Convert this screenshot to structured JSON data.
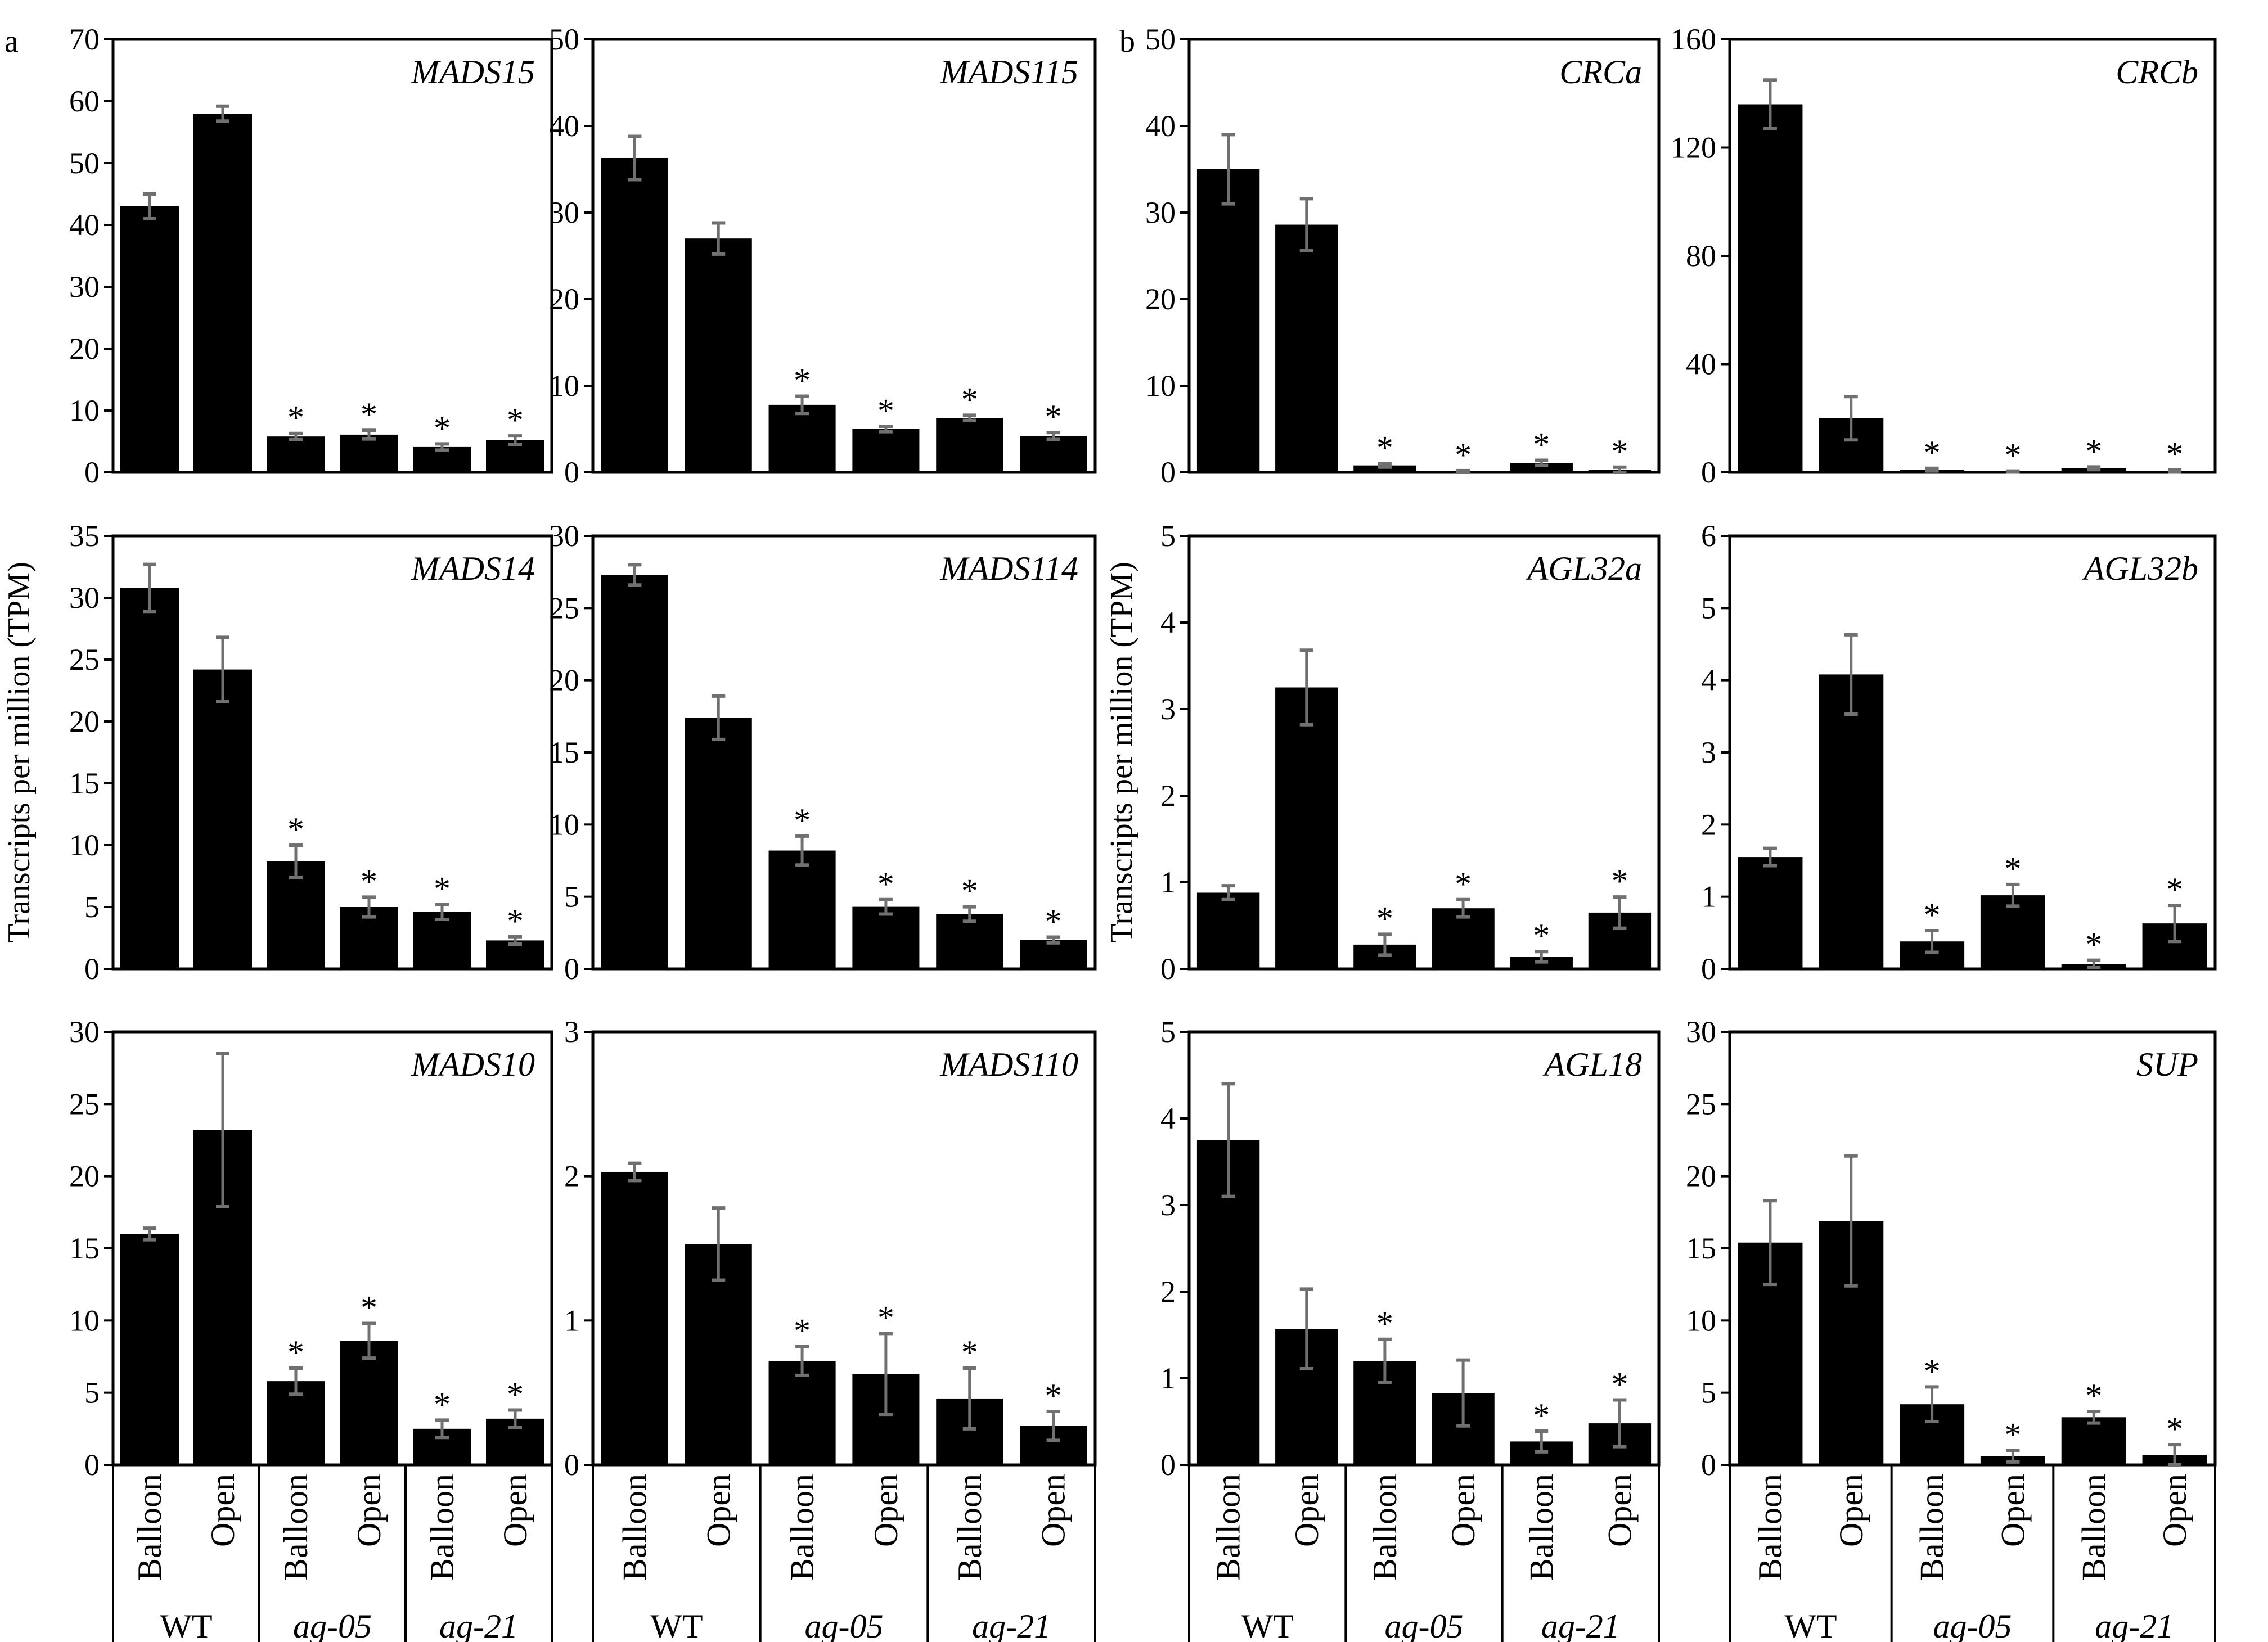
{
  "panel_letters": [
    "a",
    "b"
  ],
  "ylabel": "Transcripts per million (TPM)",
  "categories": [
    "Balloon",
    "Open",
    "Balloon",
    "Open",
    "Balloon",
    "Open"
  ],
  "groups": [
    "WT",
    "ag-05",
    "ag-21"
  ],
  "colors": {
    "bar": "#000000",
    "error_bar": "#707070",
    "axis": "#000000"
  },
  "chart_data": [
    {
      "type": "bar",
      "title": "MADS15",
      "ylim": [
        0,
        70
      ],
      "yticks": [
        0,
        10,
        20,
        30,
        40,
        50,
        60,
        70
      ],
      "values": [
        43,
        58,
        5.8,
        6.1,
        4.1,
        5.2
      ],
      "errors": [
        2,
        1.2,
        0.5,
        0.7,
        0.5,
        0.7
      ],
      "significant": [
        false,
        false,
        true,
        true,
        true,
        true
      ]
    },
    {
      "type": "bar",
      "title": "MADS115",
      "ylim": [
        0,
        50
      ],
      "yticks": [
        0,
        10,
        20,
        30,
        40,
        50
      ],
      "values": [
        36.3,
        27,
        7.8,
        5.0,
        6.3,
        4.2
      ],
      "errors": [
        2.5,
        1.8,
        1,
        0.3,
        0.3,
        0.4
      ],
      "significant": [
        false,
        false,
        true,
        true,
        true,
        true
      ]
    },
    {
      "type": "bar",
      "title": "CRCa",
      "ylim": [
        0,
        50
      ],
      "yticks": [
        0,
        10,
        20,
        30,
        40,
        50
      ],
      "values": [
        35,
        28.6,
        0.8,
        0.1,
        1.1,
        0.3
      ],
      "errors": [
        4,
        3,
        0.2,
        0.1,
        0.3,
        0.3
      ],
      "significant": [
        false,
        false,
        true,
        true,
        true,
        true
      ]
    },
    {
      "type": "bar",
      "title": "CRCb",
      "ylim": [
        0,
        160
      ],
      "yticks": [
        0,
        40,
        80,
        120,
        160
      ],
      "values": [
        136,
        20,
        1,
        0.3,
        1.5,
        0.5
      ],
      "errors": [
        9,
        8,
        0.5,
        0.2,
        0.5,
        0.4
      ],
      "significant": [
        false,
        false,
        true,
        true,
        true,
        true
      ]
    },
    {
      "type": "bar",
      "title": "MADS14",
      "ylim": [
        0,
        35
      ],
      "yticks": [
        0,
        5,
        10,
        15,
        20,
        25,
        30,
        35
      ],
      "values": [
        30.8,
        24.2,
        8.7,
        5.0,
        4.6,
        2.3
      ],
      "errors": [
        1.9,
        2.6,
        1.3,
        0.8,
        0.6,
        0.3
      ],
      "significant": [
        false,
        false,
        true,
        true,
        true,
        true
      ]
    },
    {
      "type": "bar",
      "title": "MADS114",
      "ylim": [
        0,
        30
      ],
      "yticks": [
        0,
        5,
        10,
        15,
        20,
        25,
        30
      ],
      "values": [
        27.3,
        17.4,
        8.2,
        4.3,
        3.8,
        2.0
      ],
      "errors": [
        0.7,
        1.5,
        1,
        0.5,
        0.5,
        0.2
      ],
      "significant": [
        false,
        false,
        true,
        true,
        true,
        true
      ]
    },
    {
      "type": "bar",
      "title": "AGL32a",
      "ylim": [
        0,
        5
      ],
      "yticks": [
        0,
        1,
        2,
        3,
        4,
        5
      ],
      "values": [
        0.88,
        3.25,
        0.28,
        0.7,
        0.14,
        0.65
      ],
      "errors": [
        0.08,
        0.43,
        0.12,
        0.1,
        0.06,
        0.18
      ],
      "significant": [
        false,
        false,
        true,
        true,
        true,
        true
      ]
    },
    {
      "type": "bar",
      "title": "AGL32b",
      "ylim": [
        0,
        6
      ],
      "yticks": [
        0,
        1,
        2,
        3,
        4,
        5,
        6
      ],
      "values": [
        1.55,
        4.08,
        0.38,
        1.02,
        0.07,
        0.63
      ],
      "errors": [
        0.12,
        0.55,
        0.15,
        0.15,
        0.05,
        0.25
      ],
      "significant": [
        false,
        false,
        true,
        true,
        true,
        true
      ]
    },
    {
      "type": "bar",
      "title": "MADS10",
      "ylim": [
        0,
        30
      ],
      "yticks": [
        0,
        5,
        10,
        15,
        20,
        25,
        30
      ],
      "values": [
        16,
        23.2,
        5.8,
        8.6,
        2.5,
        3.2
      ],
      "errors": [
        0.4,
        5.3,
        0.9,
        1.2,
        0.6,
        0.6
      ],
      "significant": [
        false,
        false,
        true,
        true,
        true,
        true
      ]
    },
    {
      "type": "bar",
      "title": "MADS110",
      "ylim": [
        0,
        3
      ],
      "yticks": [
        0,
        1,
        2,
        3
      ],
      "values": [
        2.03,
        1.53,
        0.72,
        0.63,
        0.46,
        0.27
      ],
      "errors": [
        0.06,
        0.25,
        0.1,
        0.28,
        0.21,
        0.1
      ],
      "significant": [
        false,
        false,
        true,
        true,
        true,
        true
      ]
    },
    {
      "type": "bar",
      "title": "AGL18",
      "ylim": [
        0,
        5
      ],
      "yticks": [
        0,
        1,
        2,
        3,
        4,
        5
      ],
      "values": [
        3.75,
        1.57,
        1.2,
        0.83,
        0.27,
        0.48
      ],
      "errors": [
        0.65,
        0.46,
        0.25,
        0.38,
        0.12,
        0.27
      ],
      "significant": [
        false,
        false,
        true,
        false,
        true,
        true
      ]
    },
    {
      "type": "bar",
      "title": "SUP",
      "ylim": [
        0,
        30
      ],
      "yticks": [
        0,
        5,
        10,
        15,
        20,
        25,
        30
      ],
      "values": [
        15.4,
        16.9,
        4.2,
        0.6,
        3.3,
        0.7
      ],
      "errors": [
        2.9,
        4.5,
        1.2,
        0.4,
        0.4,
        0.7
      ],
      "significant": [
        false,
        false,
        true,
        true,
        true,
        true
      ]
    }
  ]
}
